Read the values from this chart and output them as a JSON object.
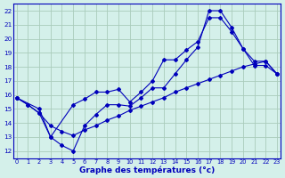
{
  "title": "Graphe des températures (°c)",
  "bg_color": "#d4f0ea",
  "grid_color": "#aaccbb",
  "line_color": "#0000bb",
  "xlim": [
    -0.3,
    23.3
  ],
  "ylim": [
    11.5,
    22.5
  ],
  "xtick_vals": [
    0,
    1,
    2,
    3,
    4,
    5,
    6,
    7,
    8,
    9,
    10,
    11,
    12,
    13,
    14,
    15,
    16,
    17,
    18,
    19,
    20,
    21,
    22,
    23
  ],
  "ytick_vals": [
    12,
    13,
    14,
    15,
    16,
    17,
    18,
    19,
    20,
    21,
    22
  ],
  "line1": {
    "x": [
      0,
      1,
      2,
      3,
      4,
      5,
      6,
      7,
      8,
      9,
      10,
      11,
      12,
      13,
      14,
      15,
      16,
      17,
      18,
      19,
      20,
      21,
      22,
      23
    ],
    "y": [
      15.8,
      15.3,
      14.7,
      13.0,
      12.4,
      12.0,
      13.8,
      14.6,
      15.3,
      15.3,
      15.2,
      15.8,
      16.5,
      16.5,
      17.5,
      18.5,
      19.4,
      22.0,
      22.0,
      20.8,
      19.3,
      18.4,
      18.4,
      17.5
    ]
  },
  "line2": {
    "x": [
      0,
      2,
      3,
      5,
      6,
      7,
      8,
      9,
      10,
      11,
      12,
      13,
      14,
      15,
      16,
      17,
      18,
      19,
      20,
      21,
      22,
      23
    ],
    "y": [
      15.8,
      15.0,
      13.0,
      15.3,
      15.7,
      16.2,
      16.2,
      16.4,
      15.5,
      16.2,
      17.0,
      18.5,
      18.5,
      19.2,
      19.8,
      21.5,
      21.5,
      20.5,
      19.3,
      18.1,
      18.1,
      17.5
    ]
  },
  "line3": {
    "x": [
      0,
      1,
      2,
      3,
      4,
      5,
      6,
      7,
      8,
      9,
      10,
      11,
      12,
      13,
      14,
      15,
      16,
      17,
      18,
      19,
      20,
      21,
      22,
      23
    ],
    "y": [
      15.8,
      15.3,
      14.7,
      13.8,
      13.4,
      13.1,
      13.5,
      13.8,
      14.2,
      14.5,
      14.9,
      15.2,
      15.5,
      15.8,
      16.2,
      16.5,
      16.8,
      17.1,
      17.4,
      17.7,
      18.0,
      18.2,
      18.4,
      17.5
    ]
  }
}
